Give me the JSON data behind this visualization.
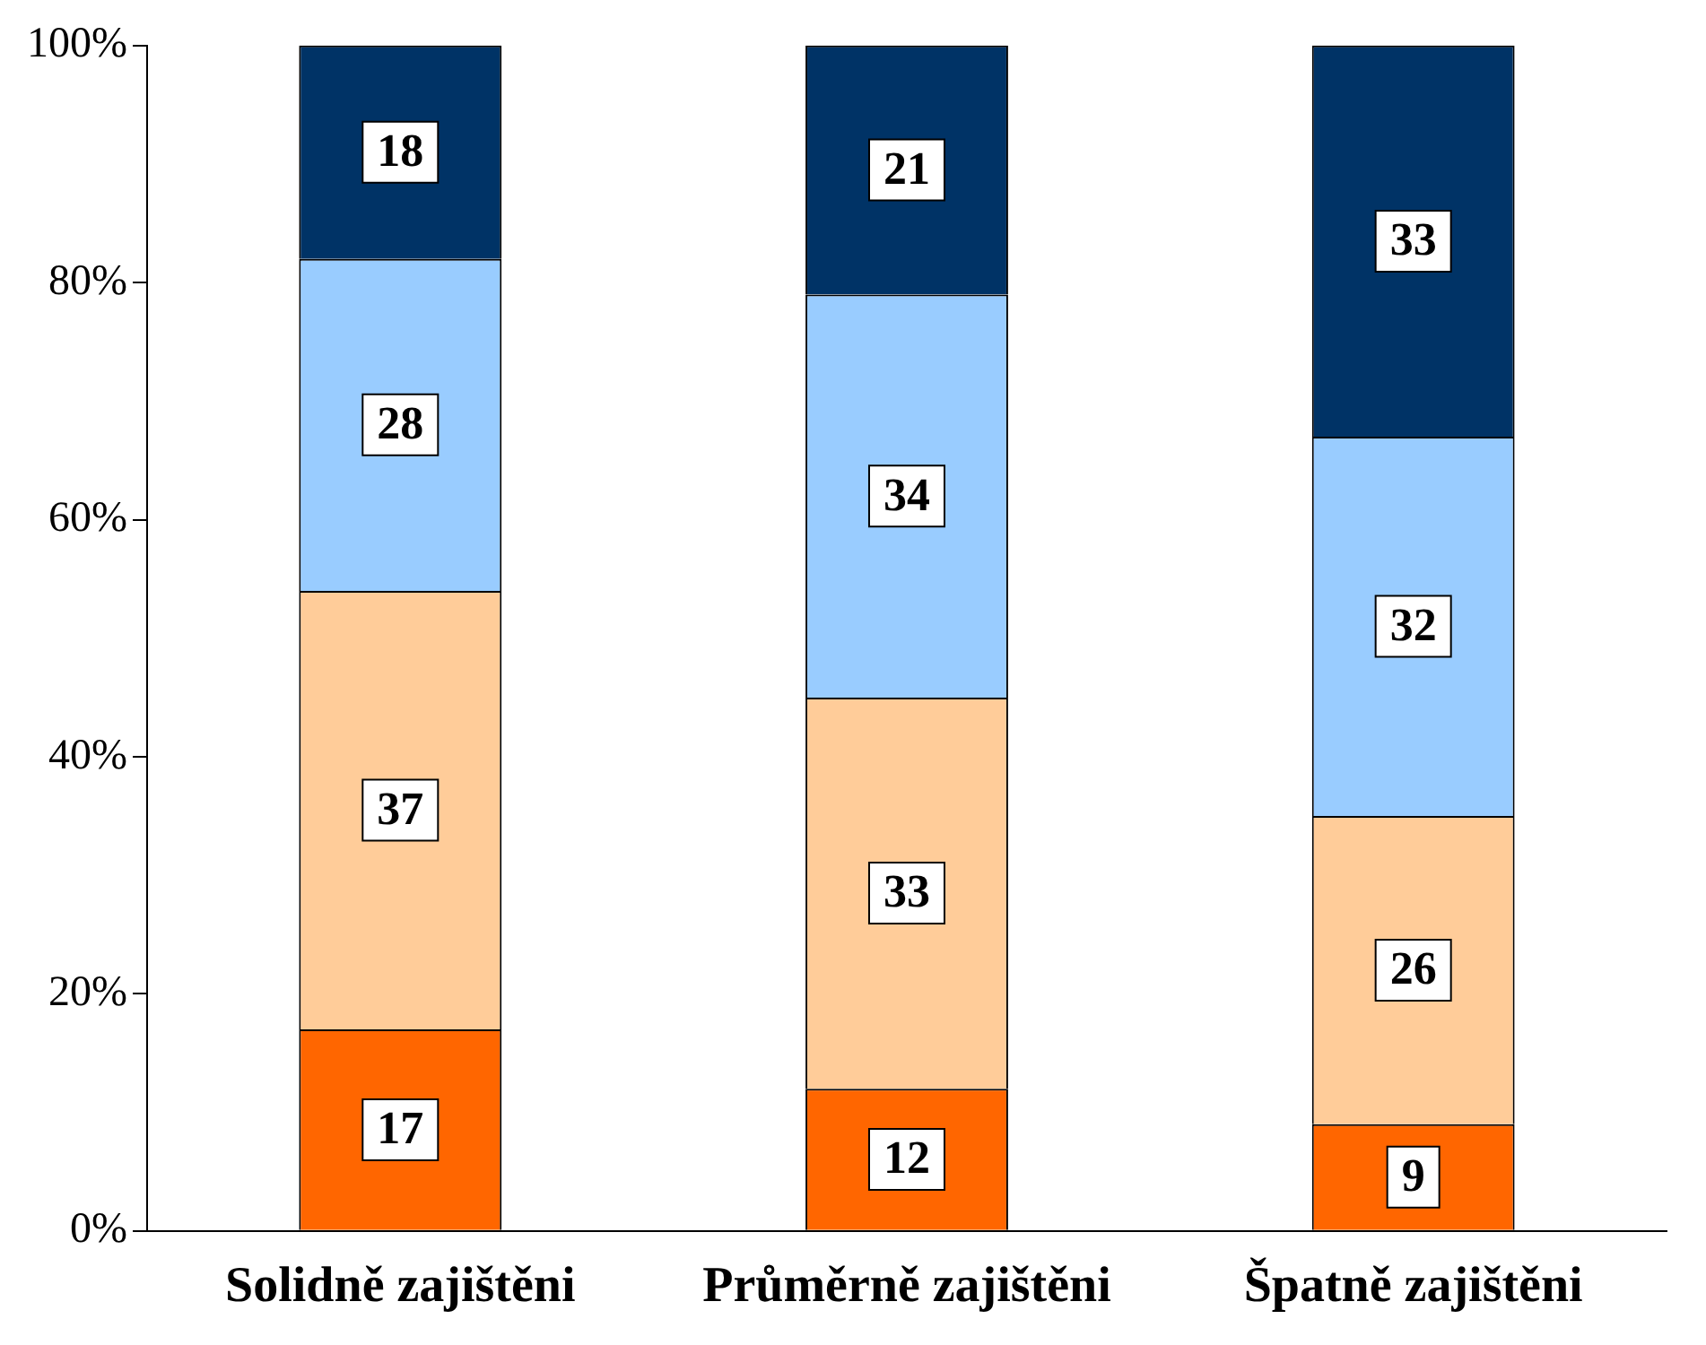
{
  "chart_data": {
    "type": "bar",
    "stacked": true,
    "categories": [
      "Solidně zajištěni",
      "Průměrně zajištěni",
      "Špatně zajištěni"
    ],
    "series": [
      {
        "color": "#ff6600",
        "values": [
          17,
          12,
          9
        ]
      },
      {
        "color": "#ffcc99",
        "values": [
          37,
          33,
          26
        ]
      },
      {
        "color": "#99ccff",
        "values": [
          28,
          34,
          32
        ]
      },
      {
        "color": "#003366",
        "values": [
          18,
          21,
          33
        ]
      }
    ],
    "ylim": [
      0,
      100
    ],
    "yticks": [
      {
        "value": 0,
        "label": "0%"
      },
      {
        "value": 20,
        "label": "20%"
      },
      {
        "value": 40,
        "label": "40%"
      },
      {
        "value": 60,
        "label": "60%"
      },
      {
        "value": 80,
        "label": "80%"
      },
      {
        "value": 100,
        "label": "100%"
      }
    ],
    "data_labels": true,
    "grid": false,
    "legend": false
  }
}
